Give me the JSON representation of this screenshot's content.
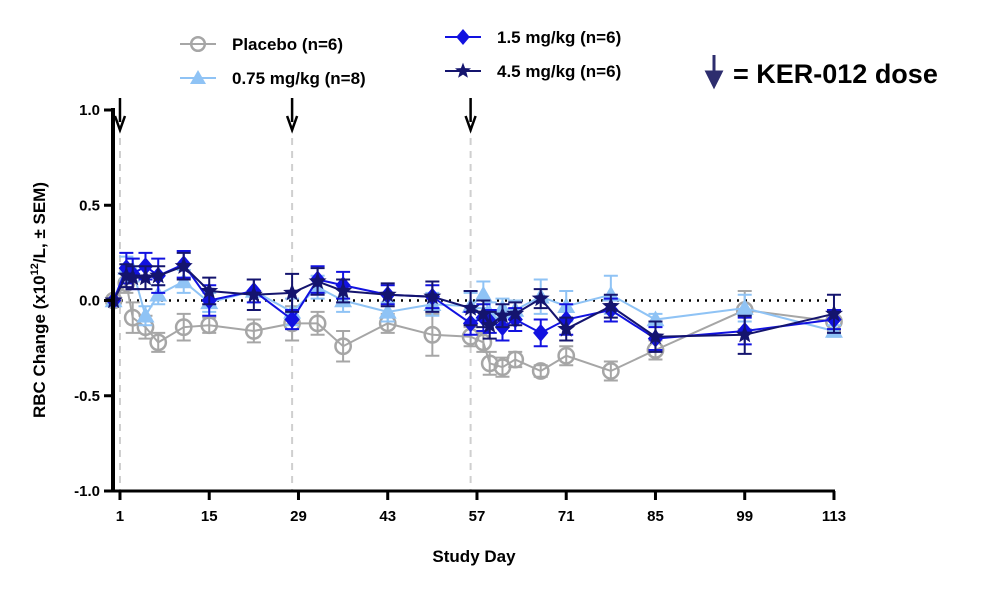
{
  "chart_data": {
    "type": "line",
    "xlabel": "Study Day",
    "ylabel": "RBC Change (x10^12/L, ± SEM)",
    "ylabel_parts": {
      "pre": "RBC Change (x10",
      "sup": "12",
      "post": "/L, ± SEM)"
    },
    "xlim": [
      0,
      113
    ],
    "ylim": [
      -1.0,
      1.0
    ],
    "xticks": [
      1,
      15,
      29,
      43,
      57,
      71,
      85,
      99,
      113
    ],
    "yticks": [
      -1.0,
      -0.5,
      0.0,
      0.5,
      1.0
    ],
    "ytick_labels": [
      "-1.0",
      "-0.5",
      "0.0",
      "0.5",
      "1.0"
    ],
    "reference_line": 0,
    "dose_days": [
      1,
      28,
      56
    ],
    "dose_legend": "= KER-012 dose",
    "x": [
      0,
      2,
      3,
      5,
      7,
      11,
      15,
      22,
      28,
      32,
      36,
      43,
      50,
      56,
      58,
      59,
      61,
      63,
      67,
      71,
      78,
      85,
      99,
      113
    ],
    "series": [
      {
        "name": "Placebo (n=6)",
        "color": "#a6a6a6",
        "marker": "open-circle",
        "values": [
          0,
          0.09,
          -0.09,
          -0.14,
          -0.22,
          -0.14,
          -0.13,
          -0.16,
          -0.12,
          -0.12,
          -0.24,
          -0.12,
          -0.18,
          -0.19,
          -0.22,
          -0.33,
          -0.35,
          -0.31,
          -0.37,
          -0.29,
          -0.37,
          -0.26,
          -0.05,
          -0.11
        ],
        "sem": [
          0,
          0.05,
          0.08,
          0.06,
          0.05,
          0.07,
          0.04,
          0.06,
          0.09,
          0.06,
          0.08,
          0.05,
          0.11,
          0.05,
          0.05,
          0.06,
          0.05,
          0.04,
          0.03,
          0.05,
          0.05,
          0.05,
          0.1,
          0.05
        ]
      },
      {
        "name": "0.75 mg/kg  (n=8)",
        "color": "#8fc3f5",
        "marker": "triangle",
        "values": [
          0,
          0.17,
          0.16,
          -0.08,
          0.03,
          0.1,
          -0.01,
          0.05,
          -0.06,
          0.07,
          0.0,
          -0.06,
          -0.02,
          -0.03,
          0.03,
          -0.07,
          -0.04,
          -0.05,
          0.02,
          -0.03,
          0.03,
          -0.1,
          -0.04,
          -0.16
        ],
        "sem": [
          0,
          0.06,
          0.06,
          0.05,
          0.05,
          0.06,
          0.05,
          0.06,
          0.07,
          0.06,
          0.06,
          0.05,
          0.06,
          0.07,
          0.07,
          0.06,
          0.05,
          0.05,
          0.09,
          0.08,
          0.1,
          0.03,
          0.07,
          0.03
        ]
      },
      {
        "name": "1.5 mg/kg (n=6)",
        "color": "#1212e0",
        "marker": "diamond",
        "values": [
          0,
          0.17,
          0.14,
          0.18,
          0.13,
          0.19,
          0.0,
          0.05,
          -0.1,
          0.11,
          0.08,
          0.03,
          0.02,
          -0.12,
          -0.09,
          -0.11,
          -0.14,
          -0.1,
          -0.17,
          -0.1,
          -0.05,
          -0.2,
          -0.16,
          -0.1
        ],
        "sem": [
          0,
          0.08,
          0.08,
          0.07,
          0.09,
          0.07,
          0.08,
          0.06,
          0.05,
          0.07,
          0.07,
          0.05,
          0.06,
          0.06,
          0.07,
          0.06,
          0.07,
          0.06,
          0.07,
          0.08,
          0.06,
          0.06,
          0.07,
          0.05
        ]
      },
      {
        "name": "4.5 mg/kg (n=6)",
        "color": "#14146e",
        "marker": "star",
        "values": [
          0,
          0.13,
          0.12,
          0.12,
          0.13,
          0.18,
          0.05,
          0.03,
          0.04,
          0.1,
          0.05,
          0.03,
          0.02,
          -0.04,
          -0.07,
          -0.13,
          -0.08,
          -0.07,
          0.01,
          -0.15,
          -0.03,
          -0.19,
          -0.18,
          -0.07
        ],
        "sem": [
          0,
          0.06,
          0.06,
          0.06,
          0.05,
          0.07,
          0.07,
          0.08,
          0.1,
          0.07,
          0.06,
          0.06,
          0.08,
          0.09,
          0.07,
          0.07,
          0.06,
          0.06,
          0.05,
          0.06,
          0.06,
          0.08,
          0.1,
          0.1
        ]
      }
    ]
  }
}
